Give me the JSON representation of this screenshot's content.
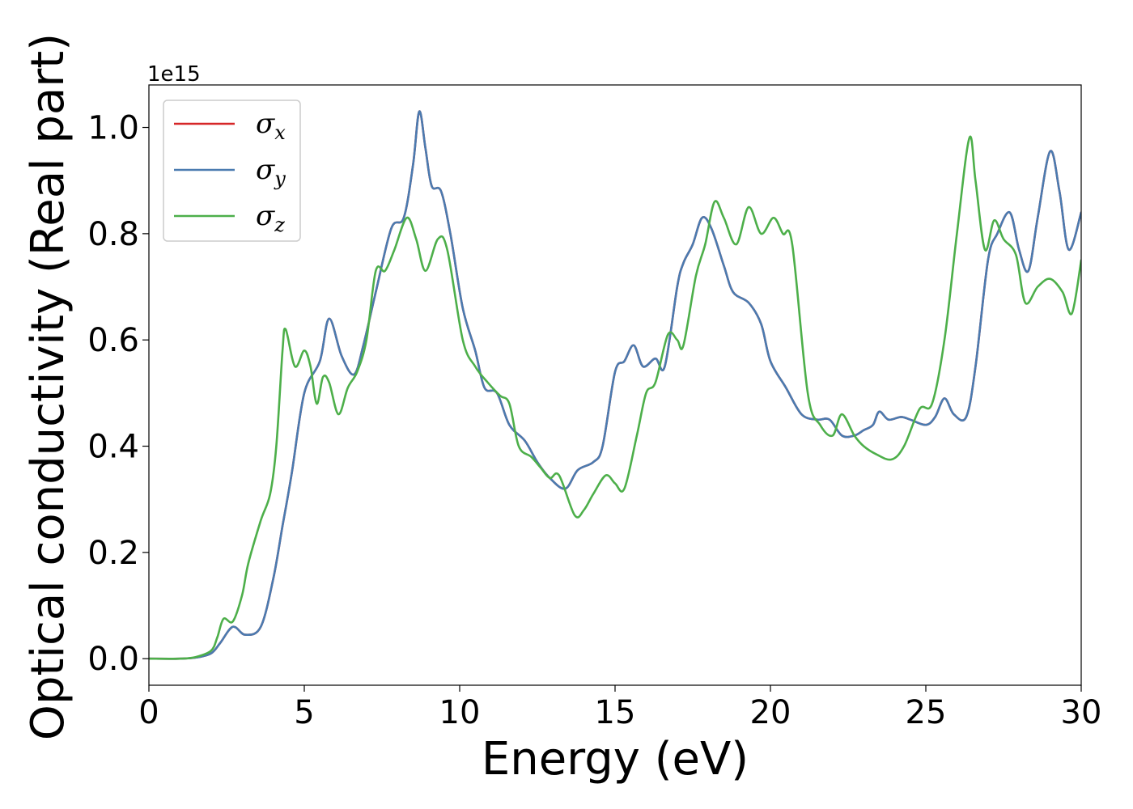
{
  "chart_data": {
    "type": "line",
    "title": "",
    "xlabel": "Energy (eV)",
    "ylabel": "Optical conductivity (Real part)",
    "y_offset_text": "1e15",
    "xlim": [
      0,
      30
    ],
    "ylim": [
      -0.05,
      1.08
    ],
    "xticks": [
      0,
      5,
      10,
      15,
      20,
      25,
      30
    ],
    "xtick_labels": [
      "0",
      "5",
      "10",
      "15",
      "20",
      "25",
      "30"
    ],
    "yticks": [
      0.0,
      0.2,
      0.4,
      0.6,
      0.8,
      1.0
    ],
    "ytick_labels": [
      "0.0",
      "0.2",
      "0.4",
      "0.6",
      "0.8",
      "1.0"
    ],
    "grid": false,
    "legend_position": "top-left",
    "series": [
      {
        "name": "σx",
        "legend_symbol": "σ",
        "legend_sub": "x",
        "color": "#d62728",
        "points": [
          [
            0,
            0
          ],
          [
            1,
            0
          ],
          [
            1.5,
            0.002
          ],
          [
            2,
            0.01
          ],
          [
            2.3,
            0.03
          ],
          [
            2.7,
            0.06
          ],
          [
            3.1,
            0.045
          ],
          [
            3.6,
            0.06
          ],
          [
            4.0,
            0.15
          ],
          [
            4.3,
            0.25
          ],
          [
            4.6,
            0.35
          ],
          [
            5.0,
            0.5
          ],
          [
            5.5,
            0.56
          ],
          [
            5.8,
            0.64
          ],
          [
            6.2,
            0.57
          ],
          [
            6.6,
            0.535
          ],
          [
            6.9,
            0.59
          ],
          [
            7.3,
            0.69
          ],
          [
            7.8,
            0.81
          ],
          [
            8.2,
            0.83
          ],
          [
            8.5,
            0.93
          ],
          [
            8.7,
            1.03
          ],
          [
            8.9,
            0.96
          ],
          [
            9.1,
            0.89
          ],
          [
            9.4,
            0.88
          ],
          [
            9.7,
            0.8
          ],
          [
            10.1,
            0.66
          ],
          [
            10.5,
            0.58
          ],
          [
            10.8,
            0.51
          ],
          [
            11.2,
            0.5
          ],
          [
            11.6,
            0.44
          ],
          [
            12.1,
            0.41
          ],
          [
            12.5,
            0.37
          ],
          [
            12.9,
            0.34
          ],
          [
            13.4,
            0.32
          ],
          [
            13.8,
            0.355
          ],
          [
            14.3,
            0.37
          ],
          [
            14.6,
            0.4
          ],
          [
            15.0,
            0.54
          ],
          [
            15.3,
            0.56
          ],
          [
            15.6,
            0.59
          ],
          [
            15.9,
            0.55
          ],
          [
            16.3,
            0.565
          ],
          [
            16.6,
            0.55
          ],
          [
            17.0,
            0.7
          ],
          [
            17.2,
            0.745
          ],
          [
            17.5,
            0.78
          ],
          [
            17.8,
            0.83
          ],
          [
            18.1,
            0.81
          ],
          [
            18.5,
            0.74
          ],
          [
            18.8,
            0.69
          ],
          [
            19.3,
            0.67
          ],
          [
            19.7,
            0.63
          ],
          [
            20.0,
            0.56
          ],
          [
            20.5,
            0.51
          ],
          [
            21.0,
            0.46
          ],
          [
            21.5,
            0.45
          ],
          [
            21.9,
            0.45
          ],
          [
            22.3,
            0.42
          ],
          [
            22.7,
            0.42
          ],
          [
            23.0,
            0.43
          ],
          [
            23.3,
            0.44
          ],
          [
            23.5,
            0.465
          ],
          [
            23.8,
            0.45
          ],
          [
            24.2,
            0.455
          ],
          [
            24.5,
            0.45
          ],
          [
            25.0,
            0.44
          ],
          [
            25.3,
            0.455
          ],
          [
            25.6,
            0.49
          ],
          [
            25.9,
            0.46
          ],
          [
            26.3,
            0.455
          ],
          [
            26.6,
            0.55
          ],
          [
            27.0,
            0.75
          ],
          [
            27.3,
            0.8
          ],
          [
            27.7,
            0.84
          ],
          [
            28.0,
            0.77
          ],
          [
            28.3,
            0.73
          ],
          [
            28.6,
            0.83
          ],
          [
            29.0,
            0.955
          ],
          [
            29.3,
            0.88
          ],
          [
            29.6,
            0.77
          ],
          [
            30,
            0.84
          ]
        ]
      },
      {
        "name": "σy",
        "legend_symbol": "σ",
        "legend_sub": "y",
        "color": "#4a7bb0",
        "points": [
          [
            0,
            0
          ],
          [
            1,
            0
          ],
          [
            1.5,
            0.002
          ],
          [
            2,
            0.01
          ],
          [
            2.3,
            0.03
          ],
          [
            2.7,
            0.06
          ],
          [
            3.1,
            0.045
          ],
          [
            3.6,
            0.06
          ],
          [
            4.0,
            0.15
          ],
          [
            4.3,
            0.25
          ],
          [
            4.6,
            0.35
          ],
          [
            5.0,
            0.5
          ],
          [
            5.5,
            0.56
          ],
          [
            5.8,
            0.64
          ],
          [
            6.2,
            0.57
          ],
          [
            6.6,
            0.535
          ],
          [
            6.9,
            0.59
          ],
          [
            7.3,
            0.69
          ],
          [
            7.8,
            0.81
          ],
          [
            8.2,
            0.83
          ],
          [
            8.5,
            0.93
          ],
          [
            8.7,
            1.03
          ],
          [
            8.9,
            0.96
          ],
          [
            9.1,
            0.89
          ],
          [
            9.4,
            0.88
          ],
          [
            9.7,
            0.8
          ],
          [
            10.1,
            0.66
          ],
          [
            10.5,
            0.58
          ],
          [
            10.8,
            0.51
          ],
          [
            11.2,
            0.5
          ],
          [
            11.6,
            0.44
          ],
          [
            12.1,
            0.41
          ],
          [
            12.5,
            0.37
          ],
          [
            12.9,
            0.34
          ],
          [
            13.4,
            0.32
          ],
          [
            13.8,
            0.355
          ],
          [
            14.3,
            0.37
          ],
          [
            14.6,
            0.4
          ],
          [
            15.0,
            0.54
          ],
          [
            15.3,
            0.56
          ],
          [
            15.6,
            0.59
          ],
          [
            15.9,
            0.55
          ],
          [
            16.3,
            0.565
          ],
          [
            16.6,
            0.55
          ],
          [
            17.0,
            0.7
          ],
          [
            17.2,
            0.745
          ],
          [
            17.5,
            0.78
          ],
          [
            17.8,
            0.83
          ],
          [
            18.1,
            0.81
          ],
          [
            18.5,
            0.74
          ],
          [
            18.8,
            0.69
          ],
          [
            19.3,
            0.67
          ],
          [
            19.7,
            0.63
          ],
          [
            20.0,
            0.56
          ],
          [
            20.5,
            0.51
          ],
          [
            21.0,
            0.46
          ],
          [
            21.5,
            0.45
          ],
          [
            21.9,
            0.45
          ],
          [
            22.3,
            0.42
          ],
          [
            22.7,
            0.42
          ],
          [
            23.0,
            0.43
          ],
          [
            23.3,
            0.44
          ],
          [
            23.5,
            0.465
          ],
          [
            23.8,
            0.45
          ],
          [
            24.2,
            0.455
          ],
          [
            24.5,
            0.45
          ],
          [
            25.0,
            0.44
          ],
          [
            25.3,
            0.455
          ],
          [
            25.6,
            0.49
          ],
          [
            25.9,
            0.46
          ],
          [
            26.3,
            0.455
          ],
          [
            26.6,
            0.55
          ],
          [
            27.0,
            0.75
          ],
          [
            27.3,
            0.8
          ],
          [
            27.7,
            0.84
          ],
          [
            28.0,
            0.77
          ],
          [
            28.3,
            0.73
          ],
          [
            28.6,
            0.83
          ],
          [
            29.0,
            0.955
          ],
          [
            29.3,
            0.88
          ],
          [
            29.6,
            0.77
          ],
          [
            30,
            0.84
          ]
        ]
      },
      {
        "name": "σz",
        "legend_symbol": "σ",
        "legend_sub": "z",
        "color": "#4daf4a",
        "points": [
          [
            0,
            0
          ],
          [
            1,
            0
          ],
          [
            1.5,
            0.003
          ],
          [
            2,
            0.015
          ],
          [
            2.2,
            0.04
          ],
          [
            2.4,
            0.075
          ],
          [
            2.7,
            0.07
          ],
          [
            3.0,
            0.12
          ],
          [
            3.2,
            0.18
          ],
          [
            3.6,
            0.26
          ],
          [
            3.9,
            0.31
          ],
          [
            4.1,
            0.4
          ],
          [
            4.3,
            0.58
          ],
          [
            4.4,
            0.62
          ],
          [
            4.7,
            0.55
          ],
          [
            5.0,
            0.58
          ],
          [
            5.2,
            0.55
          ],
          [
            5.4,
            0.48
          ],
          [
            5.6,
            0.53
          ],
          [
            5.8,
            0.52
          ],
          [
            6.1,
            0.46
          ],
          [
            6.4,
            0.51
          ],
          [
            6.7,
            0.54
          ],
          [
            7.0,
            0.6
          ],
          [
            7.3,
            0.73
          ],
          [
            7.6,
            0.73
          ],
          [
            7.9,
            0.77
          ],
          [
            8.3,
            0.83
          ],
          [
            8.6,
            0.79
          ],
          [
            8.9,
            0.73
          ],
          [
            9.3,
            0.79
          ],
          [
            9.6,
            0.77
          ],
          [
            10.1,
            0.6
          ],
          [
            10.5,
            0.55
          ],
          [
            10.9,
            0.52
          ],
          [
            11.3,
            0.495
          ],
          [
            11.6,
            0.48
          ],
          [
            11.9,
            0.4
          ],
          [
            12.3,
            0.38
          ],
          [
            12.6,
            0.36
          ],
          [
            12.9,
            0.34
          ],
          [
            13.2,
            0.345
          ],
          [
            13.7,
            0.27
          ],
          [
            14.0,
            0.28
          ],
          [
            14.3,
            0.31
          ],
          [
            14.7,
            0.345
          ],
          [
            15.0,
            0.33
          ],
          [
            15.3,
            0.32
          ],
          [
            15.7,
            0.42
          ],
          [
            16.0,
            0.5
          ],
          [
            16.3,
            0.52
          ],
          [
            16.7,
            0.61
          ],
          [
            17.0,
            0.6
          ],
          [
            17.2,
            0.59
          ],
          [
            17.6,
            0.72
          ],
          [
            17.9,
            0.78
          ],
          [
            18.2,
            0.86
          ],
          [
            18.5,
            0.83
          ],
          [
            18.9,
            0.78
          ],
          [
            19.3,
            0.85
          ],
          [
            19.7,
            0.8
          ],
          [
            20.1,
            0.83
          ],
          [
            20.4,
            0.8
          ],
          [
            20.7,
            0.78
          ],
          [
            21.2,
            0.5
          ],
          [
            21.6,
            0.44
          ],
          [
            22.0,
            0.42
          ],
          [
            22.3,
            0.46
          ],
          [
            22.7,
            0.42
          ],
          [
            23.0,
            0.4
          ],
          [
            23.4,
            0.385
          ],
          [
            23.9,
            0.375
          ],
          [
            24.3,
            0.4
          ],
          [
            24.8,
            0.47
          ],
          [
            25.2,
            0.48
          ],
          [
            25.6,
            0.6
          ],
          [
            26.0,
            0.8
          ],
          [
            26.4,
            0.98
          ],
          [
            26.6,
            0.9
          ],
          [
            26.9,
            0.77
          ],
          [
            27.2,
            0.825
          ],
          [
            27.5,
            0.79
          ],
          [
            27.9,
            0.76
          ],
          [
            28.2,
            0.67
          ],
          [
            28.6,
            0.7
          ],
          [
            29.0,
            0.715
          ],
          [
            29.4,
            0.69
          ],
          [
            29.7,
            0.65
          ],
          [
            30,
            0.75
          ]
        ]
      }
    ]
  }
}
